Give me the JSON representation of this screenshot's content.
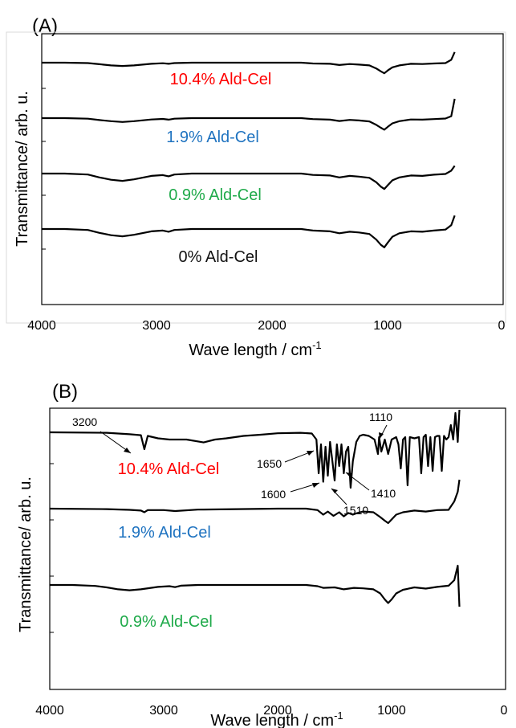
{
  "chart_data": [
    {
      "panel_label": "(A)",
      "type": "line",
      "xlabel": "Wave length / cm",
      "xlabel_sup": "-1",
      "ylabel": "Transmittance/ arb. u.",
      "xlim": [
        4000,
        0
      ],
      "x_ticks": [
        "4000",
        "3000",
        "2000",
        "1000",
        "0"
      ],
      "y_axis_values": "none",
      "series": [
        {
          "name": "10.4% Ald-Cel",
          "color": "#ff0000",
          "offset": 3,
          "x": [
            4000,
            3800,
            3600,
            3500,
            3400,
            3300,
            3200,
            3050,
            2950,
            2900,
            2850,
            2700,
            2000,
            1750,
            1650,
            1500,
            1420,
            1330,
            1250,
            1160,
            1100,
            1060,
            1030,
            1000,
            960,
            900,
            800,
            700,
            600,
            500,
            450,
            420
          ],
          "y": [
            0,
            0,
            -0.02,
            -0.08,
            -0.14,
            -0.17,
            -0.14,
            -0.06,
            -0.03,
            -0.06,
            -0.02,
            0,
            0,
            0,
            -0.04,
            -0.06,
            -0.12,
            -0.07,
            -0.1,
            -0.14,
            -0.3,
            -0.45,
            -0.55,
            -0.4,
            -0.24,
            -0.14,
            -0.06,
            -0.07,
            -0.04,
            -0.02,
            0.15,
            0.55
          ]
        },
        {
          "name": "1.9% Ald-Cel",
          "color": "#1f73c0",
          "offset": 2,
          "x": [
            4000,
            3800,
            3600,
            3500,
            3400,
            3300,
            3200,
            3050,
            2950,
            2900,
            2850,
            2700,
            2000,
            1750,
            1650,
            1500,
            1420,
            1330,
            1250,
            1160,
            1100,
            1060,
            1030,
            1000,
            960,
            900,
            800,
            700,
            600,
            500,
            450,
            420
          ],
          "y": [
            0,
            0,
            -0.03,
            -0.1,
            -0.16,
            -0.2,
            -0.16,
            -0.07,
            -0.04,
            -0.08,
            -0.03,
            0,
            0,
            0,
            -0.05,
            -0.08,
            -0.15,
            -0.09,
            -0.12,
            -0.17,
            -0.35,
            -0.5,
            -0.6,
            -0.45,
            -0.27,
            -0.16,
            -0.07,
            -0.08,
            -0.05,
            -0.02,
            0.1,
            1.0
          ]
        },
        {
          "name": "0.9% Ald-Cel",
          "color": "#1faa4a",
          "offset": 1,
          "x": [
            4000,
            3800,
            3600,
            3500,
            3400,
            3300,
            3200,
            3050,
            2950,
            2900,
            2850,
            2700,
            2000,
            1750,
            1650,
            1500,
            1420,
            1330,
            1250,
            1160,
            1100,
            1060,
            1030,
            1000,
            960,
            900,
            800,
            700,
            600,
            500,
            450,
            420
          ],
          "y": [
            0,
            0,
            -0.05,
            -0.2,
            -0.32,
            -0.38,
            -0.3,
            -0.12,
            -0.08,
            -0.14,
            -0.05,
            0,
            0,
            0,
            -0.07,
            -0.1,
            -0.2,
            -0.12,
            -0.16,
            -0.22,
            -0.45,
            -0.68,
            -0.8,
            -0.6,
            -0.35,
            -0.2,
            -0.1,
            -0.12,
            -0.06,
            -0.02,
            0.15,
            0.4
          ]
        },
        {
          "name": "0% Ald-Cel",
          "color": "#111111",
          "offset": 0,
          "x": [
            4000,
            3800,
            3600,
            3500,
            3400,
            3300,
            3200,
            3050,
            2950,
            2900,
            2850,
            2700,
            2000,
            1750,
            1650,
            1500,
            1420,
            1330,
            1250,
            1160,
            1100,
            1060,
            1030,
            1000,
            960,
            900,
            800,
            700,
            600,
            500,
            450,
            420
          ],
          "y": [
            0,
            0,
            -0.05,
            -0.2,
            -0.32,
            -0.38,
            -0.3,
            -0.12,
            -0.08,
            -0.14,
            -0.05,
            0,
            0,
            0,
            -0.08,
            -0.12,
            -0.22,
            -0.14,
            -0.18,
            -0.26,
            -0.55,
            -0.82,
            -0.95,
            -0.7,
            -0.4,
            -0.22,
            -0.12,
            -0.14,
            -0.08,
            -0.03,
            0.2,
            0.7
          ]
        }
      ]
    },
    {
      "panel_label": "(B)",
      "type": "line",
      "xlabel": "Wave length / cm",
      "xlabel_sup": "-1",
      "ylabel": "Transmittance/ arb. u.",
      "xlim": [
        4000,
        0
      ],
      "x_ticks": [
        "4000",
        "3000",
        "2000",
        "1000",
        "0"
      ],
      "y_axis_values": "none",
      "series": [
        {
          "name": "10.4% Ald-Cel",
          "color": "#ff0000",
          "offset": 2,
          "x": [
            4000,
            3500,
            3300,
            3200,
            3170,
            3140,
            3050,
            2950,
            2800,
            2650,
            2550,
            2450,
            2300,
            2150,
            2000,
            1800,
            1700,
            1660,
            1640,
            1620,
            1600,
            1580,
            1560,
            1540,
            1520,
            1500,
            1480,
            1460,
            1440,
            1420,
            1400,
            1380,
            1360,
            1340,
            1310,
            1280,
            1250,
            1200,
            1150,
            1120,
            1110,
            1090,
            1060,
            1030,
            1000,
            960,
            940,
            920,
            900,
            880,
            860,
            840,
            800,
            760,
            740,
            720,
            700,
            680,
            660,
            640,
            620,
            600,
            580,
            560,
            540,
            520,
            500,
            480,
            460,
            440,
            420,
            405
          ],
          "y": [
            0,
            -0.02,
            -0.08,
            -0.12,
            -0.7,
            -0.15,
            -0.25,
            -0.3,
            -0.3,
            -0.42,
            -0.3,
            -0.25,
            -0.15,
            -0.1,
            -0.04,
            -0.02,
            -0.05,
            -0.3,
            -1.7,
            -0.5,
            -2.05,
            -0.6,
            -1.8,
            -0.4,
            -1.2,
            -2.0,
            -0.5,
            -1.4,
            -0.5,
            -1.7,
            -0.8,
            -0.6,
            -2.3,
            -1.2,
            -0.4,
            -0.15,
            -0.1,
            -0.15,
            -0.3,
            -0.9,
            -0.2,
            -0.8,
            -0.3,
            -0.9,
            -0.3,
            -0.2,
            -0.5,
            -1.5,
            -0.3,
            -0.2,
            -2.2,
            -0.2,
            -0.25,
            -0.2,
            -1.7,
            -0.2,
            -0.1,
            -1.4,
            -0.2,
            -1.6,
            -0.2,
            -0.15,
            -0.15,
            -1.6,
            -0.15,
            -0.3,
            -0.2,
            0.3,
            -0.3,
            0.8,
            -0.4,
            1.5
          ]
        },
        {
          "name": "1.9% Ald-Cel",
          "color": "#1f73c0",
          "offset": 1,
          "x": [
            4000,
            3500,
            3300,
            3200,
            3170,
            3140,
            3000,
            2900,
            2700,
            2000,
            1750,
            1650,
            1600,
            1560,
            1510,
            1460,
            1420,
            1380,
            1340,
            1300,
            1250,
            1160,
            1100,
            1060,
            1030,
            1000,
            960,
            900,
            800,
            700,
            600,
            500,
            450,
            420,
            405
          ],
          "y": [
            0,
            -0.02,
            -0.05,
            -0.08,
            -0.15,
            -0.06,
            -0.06,
            -0.1,
            -0.04,
            0,
            0,
            -0.06,
            -0.25,
            -0.12,
            -0.3,
            -0.15,
            -0.32,
            -0.18,
            -0.25,
            -0.18,
            -0.12,
            -0.15,
            -0.35,
            -0.5,
            -0.6,
            -0.45,
            -0.25,
            -0.15,
            -0.08,
            -0.12,
            -0.06,
            -0.05,
            0.3,
            0.7,
            1.2
          ]
        },
        {
          "name": "0.9% Ald-Cel",
          "color": "#1faa4a",
          "offset": 0,
          "x": [
            4000,
            3800,
            3600,
            3500,
            3400,
            3300,
            3200,
            3050,
            2950,
            2900,
            2850,
            2700,
            2000,
            1750,
            1650,
            1600,
            1500,
            1420,
            1330,
            1250,
            1160,
            1100,
            1060,
            1030,
            1000,
            960,
            900,
            800,
            700,
            600,
            500,
            450,
            420,
            405
          ],
          "y": [
            0,
            0,
            -0.04,
            -0.1,
            -0.18,
            -0.22,
            -0.18,
            -0.08,
            -0.05,
            -0.09,
            -0.03,
            0,
            0,
            0,
            -0.05,
            -0.12,
            -0.1,
            -0.18,
            -0.12,
            -0.14,
            -0.18,
            -0.35,
            -0.6,
            -0.75,
            -0.6,
            -0.35,
            -0.2,
            -0.1,
            -0.15,
            -0.08,
            -0.03,
            0.2,
            0.8,
            -0.9
          ]
        }
      ],
      "annotations": [
        "3200",
        "1650",
        "1600",
        "1110",
        "1410",
        "1510"
      ]
    }
  ]
}
